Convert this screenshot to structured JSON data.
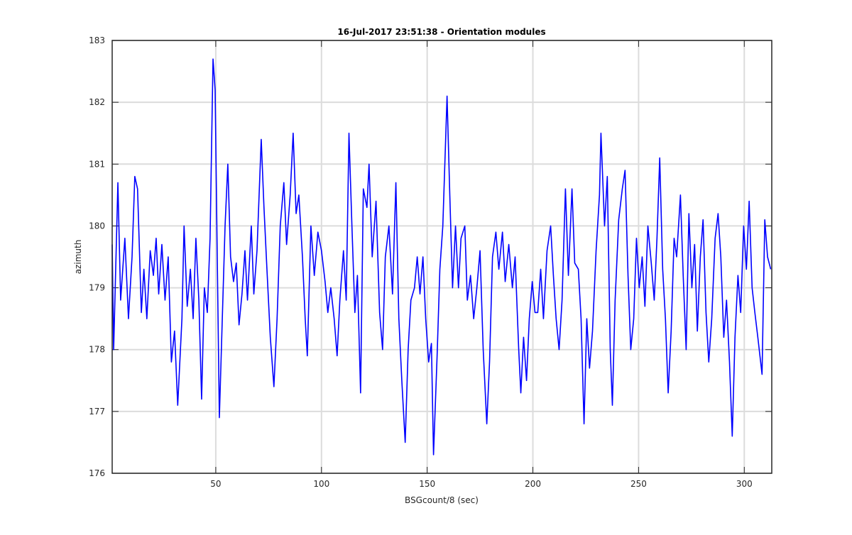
{
  "chart_data": {
    "type": "line",
    "title": "16-Jul-2017 23:51:38 - Orientation modules",
    "xlabel": "BSGcount/8 (sec)",
    "ylabel": "azimuth",
    "color": "#0000ff",
    "grid": true,
    "xlim": [
      1,
      313
    ],
    "ylim": [
      176,
      183
    ],
    "xticks": [
      50,
      100,
      150,
      200,
      250,
      300
    ],
    "yticks": [
      176,
      177,
      178,
      179,
      180,
      181,
      182,
      183
    ],
    "x": [
      1.0,
      1.7,
      3.7,
      5.0,
      7.0,
      8.7,
      10.4,
      11.7,
      13.0,
      14.8,
      16.0,
      17.4,
      19.0,
      20.5,
      21.8,
      23.0,
      24.5,
      26.0,
      27.5,
      29.0,
      30.5,
      32.0,
      34.0,
      35.0,
      36.5,
      38.0,
      39.3,
      40.6,
      42.0,
      43.3,
      44.6,
      46.0,
      47.3,
      48.7,
      49.7,
      50.7,
      51.7,
      53.0,
      54.4,
      55.7,
      57.0,
      58.4,
      59.7,
      61.0,
      62.4,
      63.8,
      65.0,
      66.8,
      68.0,
      69.5,
      71.5,
      72.8,
      74.2,
      75.8,
      77.5,
      79.0,
      80.5,
      82.2,
      83.5,
      85.2,
      86.6,
      88.0,
      89.3,
      91.0,
      92.3,
      93.3,
      95.0,
      96.6,
      98.3,
      100.0,
      101.7,
      103.0,
      104.4,
      106.0,
      107.4,
      108.7,
      110.4,
      111.7,
      113.0,
      114.4,
      115.8,
      117.0,
      118.5,
      119.8,
      121.5,
      122.5,
      124.0,
      125.8,
      127.5,
      128.9,
      130.2,
      131.9,
      133.6,
      135.2,
      136.6,
      138.0,
      139.6,
      141.0,
      142.3,
      144.0,
      145.3,
      146.6,
      148.0,
      149.3,
      150.7,
      152.0,
      153.0,
      154.7,
      156.0,
      157.4,
      159.4,
      160.7,
      162.0,
      163.4,
      164.8,
      166.0,
      167.8,
      169.0,
      170.5,
      172.0,
      173.5,
      175.0,
      176.5,
      178.2,
      179.5,
      180.9,
      182.5,
      183.9,
      185.6,
      186.9,
      188.6,
      190.3,
      191.6,
      193.3,
      194.3,
      195.6,
      197.0,
      198.3,
      199.7,
      201.0,
      202.3,
      203.7,
      205.0,
      206.7,
      208.4,
      209.7,
      211.0,
      212.4,
      213.8,
      215.4,
      216.8,
      218.5,
      219.8,
      221.5,
      222.8,
      224.2,
      225.5,
      226.8,
      228.2,
      229.9,
      231.5,
      232.2,
      233.9,
      235.2,
      236.6,
      237.6,
      238.9,
      240.6,
      242.3,
      243.6,
      245.0,
      246.3,
      247.7,
      249.0,
      250.3,
      251.7,
      253.0,
      254.4,
      256.0,
      257.4,
      258.7,
      260.0,
      261.4,
      262.7,
      264.0,
      265.4,
      266.8,
      268.0,
      269.8,
      271.1,
      272.5,
      273.8,
      275.2,
      276.5,
      277.8,
      279.2,
      280.5,
      281.9,
      283.2,
      284.6,
      286.2,
      287.6,
      288.9,
      290.3,
      291.6,
      293.0,
      294.3,
      295.6,
      297.0,
      298.3,
      299.7,
      301.0,
      302.3,
      303.7,
      305.0,
      306.4,
      307.4,
      308.4,
      309.7,
      311.0,
      312.5
    ],
    "values": [
      179.7,
      178.0,
      180.7,
      178.8,
      179.8,
      178.5,
      179.5,
      180.8,
      180.6,
      178.6,
      179.3,
      178.5,
      179.6,
      179.2,
      179.8,
      178.9,
      179.7,
      178.8,
      179.5,
      177.8,
      178.3,
      177.1,
      178.5,
      180.0,
      178.7,
      179.3,
      178.5,
      179.8,
      178.8,
      177.2,
      179.0,
      178.6,
      179.8,
      182.7,
      182.2,
      179.5,
      176.9,
      178.4,
      180.0,
      181.0,
      179.5,
      179.1,
      179.4,
      178.4,
      178.9,
      179.6,
      178.8,
      180.0,
      178.9,
      179.6,
      181.4,
      180.3,
      179.3,
      178.2,
      177.4,
      178.5,
      180.0,
      180.7,
      179.7,
      180.5,
      181.5,
      180.2,
      180.5,
      179.5,
      178.5,
      177.9,
      180.0,
      179.2,
      179.9,
      179.6,
      179.1,
      178.6,
      179.0,
      178.5,
      177.9,
      178.8,
      179.6,
      178.8,
      181.5,
      180.0,
      178.6,
      179.2,
      177.3,
      180.6,
      180.3,
      181.0,
      179.5,
      180.4,
      178.6,
      178.0,
      179.5,
      180.0,
      178.9,
      180.7,
      178.5,
      177.5,
      176.5,
      178.0,
      178.8,
      179.0,
      179.5,
      178.9,
      179.5,
      178.5,
      177.8,
      178.1,
      176.3,
      177.9,
      179.3,
      180.0,
      182.1,
      180.5,
      179.0,
      180.0,
      179.0,
      179.8,
      180.0,
      178.8,
      179.2,
      178.5,
      179.0,
      179.6,
      178.0,
      176.8,
      177.8,
      179.5,
      179.9,
      179.3,
      179.9,
      179.1,
      179.7,
      179.0,
      179.5,
      178.0,
      177.3,
      178.2,
      177.5,
      178.5,
      179.1,
      178.6,
      178.6,
      179.3,
      178.5,
      179.6,
      180.0,
      179.2,
      178.5,
      178.0,
      178.8,
      180.6,
      179.2,
      180.6,
      179.4,
      179.3,
      178.5,
      176.8,
      178.5,
      177.7,
      178.3,
      179.6,
      180.5,
      181.5,
      180.0,
      180.8,
      178.0,
      177.1,
      178.8,
      180.1,
      180.6,
      180.9,
      179.2,
      178.0,
      178.5,
      179.8,
      179.0,
      179.5,
      178.7,
      180.0,
      179.4,
      178.8,
      179.8,
      181.1,
      179.3,
      178.5,
      177.3,
      178.3,
      179.8,
      179.5,
      180.5,
      179.2,
      178.0,
      180.2,
      179.0,
      179.7,
      178.3,
      179.5,
      180.1,
      178.6,
      177.8,
      178.5,
      179.8,
      180.2,
      179.5,
      178.2,
      178.8,
      177.8,
      176.6,
      178.2,
      179.2,
      178.6,
      180.0,
      179.3,
      180.4,
      179.0,
      178.6,
      178.2,
      177.9,
      177.6,
      180.1,
      179.5,
      179.3
    ]
  }
}
